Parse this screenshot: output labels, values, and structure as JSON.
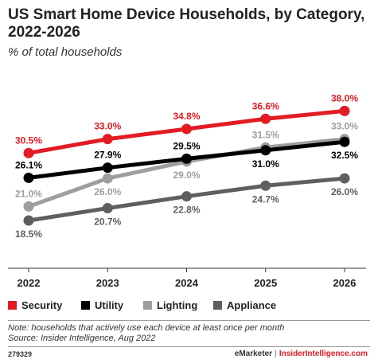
{
  "title": "US Smart Home Device Households, by Category, 2022-2026",
  "subtitle": "% of total households",
  "chart_data": {
    "type": "line",
    "x": [
      "2022",
      "2023",
      "2024",
      "2025",
      "2026"
    ],
    "ylim": [
      10,
      45
    ],
    "grid": false,
    "legend_position": "bottom",
    "series": [
      {
        "name": "Security",
        "color": "#e31b23",
        "values": [
          30.5,
          33.0,
          34.8,
          36.6,
          38.0
        ],
        "labels": [
          "30.5%",
          "33.0%",
          "34.8%",
          "36.6%",
          "38.0%"
        ],
        "label_side": [
          "above",
          "above",
          "above",
          "above",
          "above"
        ]
      },
      {
        "name": "Utility",
        "color": "#000000",
        "values": [
          26.1,
          27.9,
          29.5,
          31.0,
          32.5
        ],
        "labels": [
          "26.1%",
          "27.9%",
          "29.5%",
          "31.0%",
          "32.5%"
        ],
        "label_side": [
          "above",
          "above",
          "above",
          "below",
          "below"
        ]
      },
      {
        "name": "Lighting",
        "color": "#9e9e9e",
        "values": [
          21.0,
          26.0,
          29.0,
          31.5,
          33.0
        ],
        "labels": [
          "21.0%",
          "26.0%",
          "29.0%",
          "31.5%",
          "33.0%"
        ],
        "label_side": [
          "above",
          "below",
          "below",
          "above",
          "above"
        ]
      },
      {
        "name": "Appliance",
        "color": "#5f5f5f",
        "values": [
          18.5,
          20.7,
          22.8,
          24.7,
          26.0
        ],
        "labels": [
          "18.5%",
          "20.7%",
          "22.8%",
          "24.7%",
          "26.0%"
        ],
        "label_side": [
          "below",
          "below",
          "below",
          "below",
          "below"
        ]
      }
    ]
  },
  "notes": {
    "note": "Note: households that actively use each device at least once per month",
    "source": "Source: Insider Intelligence, Aug 2022"
  },
  "footer": {
    "id": "279329",
    "brand": "eMarketer",
    "separator": "|",
    "site": "InsiderIntelligence.com"
  }
}
